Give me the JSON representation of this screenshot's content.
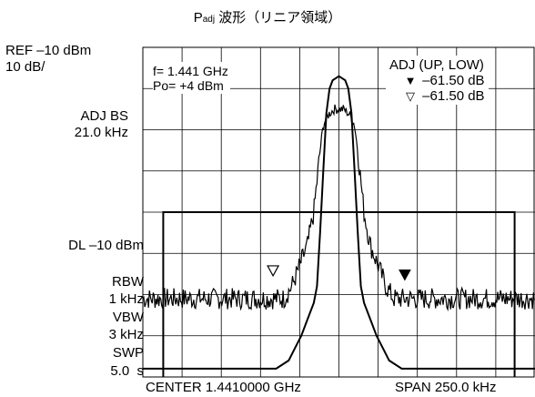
{
  "title": {
    "main": "P",
    "sub": "adj",
    "rest": " 波形（リニア領域）"
  },
  "left_panel": {
    "ref_level": "REF –10 dBm",
    "scale": "10 dB/",
    "adj_bs_label": "ADJ BS",
    "adj_bs_value": "21.0 kHz",
    "dl_level": "DL –10 dBm",
    "rbw_label": "RBW",
    "rbw_value": "1 kHz",
    "vbw_label": "VBW",
    "vbw_value": "3 kHz",
    "swp_label": "SWP",
    "swp_value": "5.0  s"
  },
  "marker_box": {
    "freq": "f= 1.441 GHz",
    "power": "Po= +4 dBm"
  },
  "adj_box": {
    "header": "ADJ (UP, LOW)",
    "up_symbol": "▼",
    "up_value": "–61.50 dB",
    "low_symbol": "▽",
    "low_value": "–61.50 dB"
  },
  "bottom": {
    "center": "CENTER 1.4410000 GHz",
    "span": "SPAN 250.0 kHz"
  },
  "colors": {
    "trace": "#000000",
    "grid": "#000000",
    "background": "#ffffff"
  },
  "chart_data": {
    "type": "line",
    "grid": true,
    "divisions": {
      "x": 10,
      "y": 8
    },
    "ylim_dBm": [
      -90,
      -10
    ],
    "xlim_kHz_offset": [
      -125,
      125
    ],
    "series": [
      {
        "x_kHz": [
          -125,
          -80,
          -40,
          -32,
          -28,
          -24,
          -20,
          -16,
          -14,
          -12,
          -10,
          -8,
          -6,
          -4,
          0,
          4,
          6,
          8,
          10,
          12,
          14,
          16,
          20,
          24,
          28,
          32,
          40,
          80,
          125
        ],
        "y_dBm": [
          -88,
          -88,
          -88,
          -86,
          -83,
          -80,
          -76,
          -72,
          -68,
          -55,
          -40,
          -26,
          -20,
          -18,
          -17,
          -18,
          -20,
          -26,
          -40,
          -55,
          -68,
          -72,
          -76,
          -80,
          -83,
          -86,
          -88,
          -88,
          -88
        ]
      },
      {
        "x_kHz": [
          -125,
          -45,
          -35,
          -30,
          -25,
          -20,
          -16,
          -12,
          -10,
          -8,
          -6,
          -3,
          0,
          3,
          6,
          8,
          10,
          12,
          16,
          20,
          25,
          30,
          35,
          45,
          125
        ],
        "y_dBm": [
          -71,
          -71,
          -71,
          -68,
          -63,
          -58,
          -50,
          -35,
          -29,
          -27,
          -26,
          -25,
          -25,
          -25,
          -26,
          -27,
          -29,
          -35,
          -50,
          -58,
          -63,
          -68,
          -71,
          -71,
          -71
        ]
      }
    ],
    "dl_line_dBm": -50,
    "adj_markers": [
      {
        "x_kHz": -42,
        "y_dBm": -67,
        "type": "low-open"
      },
      {
        "x_kHz": 42,
        "y_dBm": -68,
        "type": "up-filled"
      }
    ]
  }
}
